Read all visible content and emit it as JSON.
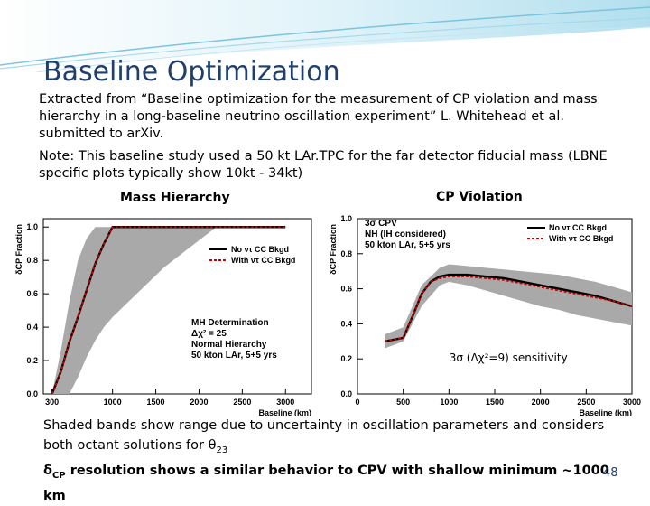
{
  "slide": {
    "title": "Baseline Optimization",
    "paragraph1": "Extracted from “Baseline optimization for the measurement of CP violation and mass hierarchy in a long-baseline neutrino oscillation experiment” L. Whitehead et al. submitted to arXiv.",
    "paragraph2": "Note: This baseline study used a 50 kt LAr.TPC for the far detector fiducial mass  (LBNE specific plots typically show 10kt - 34kt)",
    "heading_mh": "Mass Hierarchy",
    "heading_cp": "CP Violation",
    "note1": "Shaded bands show range due to uncertainty in oscillation parameters and considers both octant solutions for θ",
    "note1_sub": "23",
    "note2_prefix": "δ",
    "note2_sub": "CP",
    "note2": " resolution shows a similar behavior to CPV with shallow minimum ~1000 km",
    "page_number": "48"
  },
  "chart_data": [
    {
      "type": "line",
      "xlabel": "Baseline (km)",
      "ylabel": "δCP Fraction",
      "xlim": [
        200,
        3300
      ],
      "ylim": [
        0,
        1.05
      ],
      "xticks": [
        300,
        1000,
        1500,
        2000,
        2500,
        3000
      ],
      "xtick_labels": [
        "300",
        "1000",
        "1500",
        "2000",
        "2500",
        "3000"
      ],
      "yticks": [
        0,
        0.2,
        0.4,
        0.6,
        0.8,
        1.0
      ],
      "ytick_labels": [
        "0.0",
        "0.2",
        "0.4",
        "0.6",
        "0.8",
        "1.0"
      ],
      "legend": [
        "No ντ CC Bkgd",
        "With ντ CC Bkgd"
      ],
      "legend_position": "top-right",
      "annotation": [
        "MH Determination",
        "Δχ² = 25",
        "Normal Hierarchy",
        "50 kton LAr, 5+5 yrs"
      ],
      "band": {
        "x": [
          300,
          400,
          500,
          600,
          700,
          800,
          900,
          1000,
          1200,
          1400,
          1600,
          1800,
          2000,
          2200,
          2400,
          2600,
          2800,
          3000
        ],
        "lower": [
          0.0,
          0.0,
          0.0,
          0.1,
          0.22,
          0.32,
          0.4,
          0.46,
          0.56,
          0.66,
          0.76,
          0.84,
          0.92,
          1.0,
          1.0,
          1.0,
          1.0,
          1.0
        ],
        "upper": [
          0.0,
          0.25,
          0.55,
          0.8,
          0.93,
          1.0,
          1.0,
          1.0,
          1.0,
          1.0,
          1.0,
          1.0,
          1.0,
          1.0,
          1.0,
          1.0,
          1.0,
          1.0
        ]
      },
      "series": [
        {
          "name": "No ντ CC Bkgd",
          "color": "#000000",
          "x": [
            300,
            400,
            500,
            600,
            700,
            800,
            900,
            1000,
            1100,
            1200,
            1400,
            1600,
            1800,
            2000,
            2500,
            3000
          ],
          "values": [
            0.0,
            0.13,
            0.31,
            0.46,
            0.62,
            0.78,
            0.9,
            1.0,
            1.0,
            1.0,
            1.0,
            1.0,
            1.0,
            1.0,
            1.0,
            1.0
          ]
        },
        {
          "name": "With ντ CC Bkgd",
          "color": "#cc0000",
          "x": [
            300,
            400,
            500,
            600,
            700,
            800,
            900,
            1000,
            1100,
            1200,
            1400,
            1600,
            1800,
            2000,
            2500,
            3000
          ],
          "values": [
            0.0,
            0.13,
            0.31,
            0.46,
            0.62,
            0.78,
            0.9,
            1.0,
            1.0,
            1.0,
            1.0,
            1.0,
            1.0,
            1.0,
            1.0,
            1.0
          ]
        }
      ]
    },
    {
      "type": "line",
      "xlabel": "Baseline (km)",
      "ylabel": "δCP Fraction",
      "xlim": [
        0,
        3000
      ],
      "ylim": [
        0,
        1.0
      ],
      "xticks": [
        0,
        500,
        1000,
        1500,
        2000,
        2500,
        3000
      ],
      "xtick_labels": [
        "0",
        "500",
        "1000",
        "1500",
        "2000",
        "2500",
        "3000"
      ],
      "yticks": [
        0,
        0.2,
        0.4,
        0.6,
        0.8,
        1.0
      ],
      "ytick_labels": [
        "0.0",
        "0.2",
        "0.4",
        "0.6",
        "0.8",
        "1.0"
      ],
      "legend": [
        "No ντ CC Bkgd",
        "With ντ CC Bkgd"
      ],
      "legend_position": "top-right",
      "annotation": [
        "3σ CPV",
        "NH (IH considered)",
        "50 kton LAr, 5+5 yrs"
      ],
      "inset_label": "3σ (Δχ²=9) sensitivity",
      "band": {
        "x": [
          300,
          500,
          700,
          900,
          1000,
          1200,
          1400,
          1600,
          1800,
          2000,
          2200,
          2400,
          2600,
          2800,
          3000
        ],
        "lower": [
          0.26,
          0.3,
          0.5,
          0.62,
          0.64,
          0.62,
          0.59,
          0.56,
          0.53,
          0.5,
          0.48,
          0.45,
          0.43,
          0.41,
          0.39
        ],
        "upper": [
          0.34,
          0.38,
          0.62,
          0.72,
          0.74,
          0.73,
          0.72,
          0.71,
          0.7,
          0.69,
          0.68,
          0.66,
          0.64,
          0.61,
          0.58
        ]
      },
      "series": [
        {
          "name": "No ντ CC Bkgd",
          "color": "#000000",
          "x": [
            300,
            500,
            600,
            700,
            800,
            900,
            1000,
            1200,
            1400,
            1600,
            1800,
            2000,
            2200,
            2400,
            2600,
            2800,
            3000
          ],
          "values": [
            0.3,
            0.32,
            0.44,
            0.57,
            0.64,
            0.67,
            0.68,
            0.68,
            0.67,
            0.66,
            0.64,
            0.62,
            0.6,
            0.58,
            0.56,
            0.53,
            0.5
          ]
        },
        {
          "name": "With ντ CC Bkgd",
          "color": "#cc0000",
          "x": [
            300,
            500,
            600,
            700,
            800,
            900,
            1000,
            1200,
            1400,
            1600,
            1800,
            2000,
            2200,
            2400,
            2600,
            2800,
            3000
          ],
          "values": [
            0.3,
            0.32,
            0.44,
            0.57,
            0.64,
            0.66,
            0.67,
            0.67,
            0.66,
            0.65,
            0.63,
            0.61,
            0.59,
            0.57,
            0.55,
            0.53,
            0.5
          ]
        }
      ]
    }
  ]
}
